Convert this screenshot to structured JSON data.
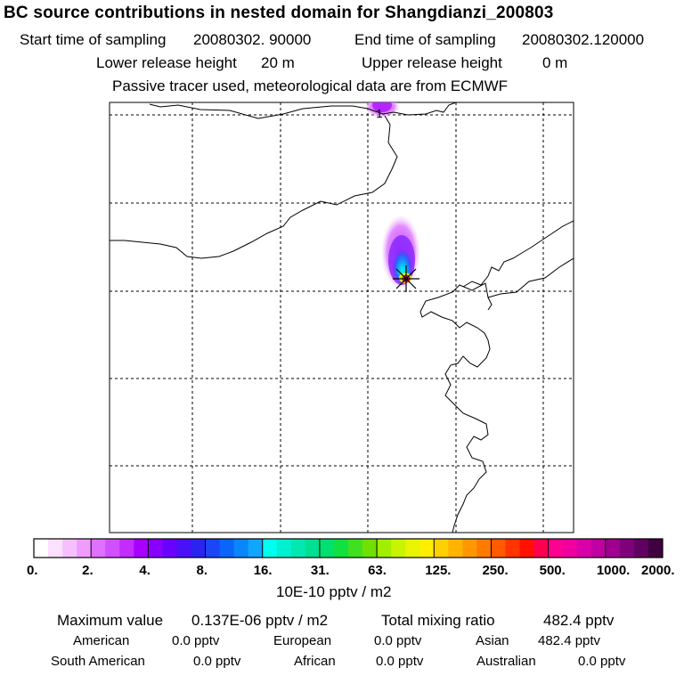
{
  "title": "BC  source contributions in nested domain for Shangdianzi_200803",
  "sampling": {
    "start_label": "Start time of sampling",
    "start_value": "20080302. 90000",
    "end_label": "End time of sampling",
    "end_value": "20080302.120000"
  },
  "release": {
    "lower_label": "Lower release height",
    "lower_value": "20 m",
    "upper_label": "Upper release height",
    "upper_value": "0 m"
  },
  "note": "Passive tracer used, meteorological data are from ECMWF",
  "chart_data": {
    "type": "heatmap",
    "title": "BC  source contributions in nested domain for Shangdianzi_200803",
    "plume": [
      {
        "level": "2.",
        "region": "outer"
      },
      {
        "level": "4.",
        "region": "upper plume"
      },
      {
        "level": "8.",
        "region": "mid plume"
      },
      {
        "level": "16.",
        "region": "near receptor"
      },
      {
        "level": "125.",
        "region": "receptor"
      }
    ],
    "northern_blob_label": "1",
    "colorbar": {
      "tick_labels": [
        "0.",
        "2.",
        "4.",
        "8.",
        "16.",
        "31.",
        "63.",
        "125.",
        "250.",
        "500.",
        "1000.",
        "2000."
      ],
      "colors": [
        "#ffffff",
        "#fbe0ff",
        "#f6c0ff",
        "#f09cff",
        "#e070ff",
        "#d050ff",
        "#c22cff",
        "#a800ff",
        "#8800ff",
        "#6a00ff",
        "#4a10f8",
        "#2a24f0",
        "#1a46f6",
        "#0a66fa",
        "#0a86fc",
        "#10a6ff",
        "#00ffee",
        "#00f0d0",
        "#00e8b0",
        "#00e090",
        "#00e070",
        "#10e040",
        "#40e020",
        "#70e000",
        "#a0ee00",
        "#c8f400",
        "#e8f400",
        "#ffee00",
        "#ffd000",
        "#ffb400",
        "#ff9800",
        "#ff7a00",
        "#ff5a00",
        "#ff3400",
        "#ff1000",
        "#ff0050",
        "#ff0090",
        "#f000a0",
        "#d800a8",
        "#c000a0",
        "#a00090",
        "#80007a",
        "#600060",
        "#400040"
      ],
      "unit_label": "10E-10 pptv / m2"
    }
  },
  "summary": {
    "max_label": "Maximum value",
    "max_value": "0.137E-06 pptv / m2",
    "total_label": "Total mixing ratio",
    "total_value": "482.4 pptv",
    "regions": [
      {
        "name": "American",
        "value": "0.0 pptv"
      },
      {
        "name": "European",
        "value": "0.0 pptv"
      },
      {
        "name": "Asian",
        "value": "482.4 pptv"
      },
      {
        "name": "South American",
        "value": "0.0 pptv"
      },
      {
        "name": "African",
        "value": "0.0 pptv"
      },
      {
        "name": "Australian",
        "value": "0.0 pptv"
      }
    ]
  }
}
